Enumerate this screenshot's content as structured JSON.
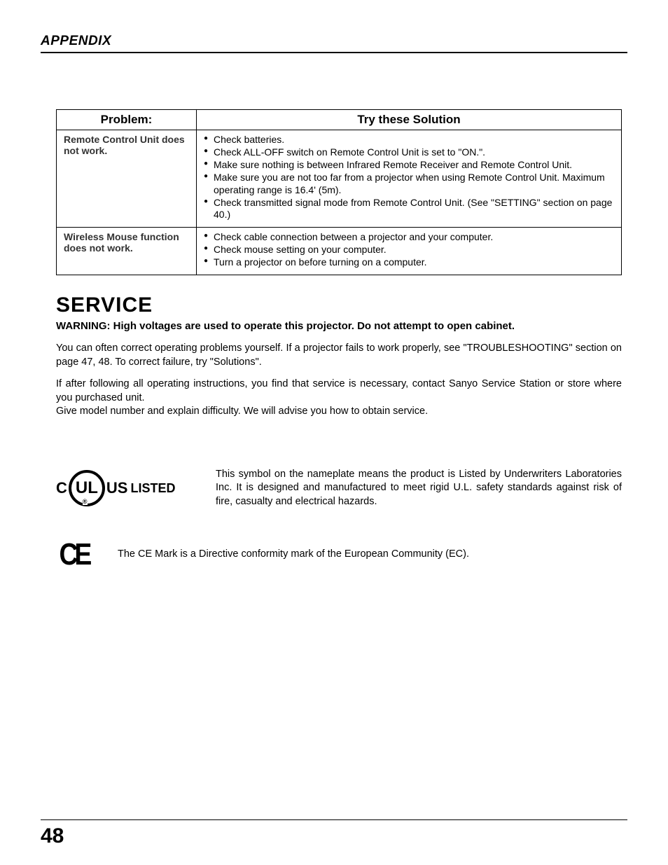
{
  "page": {
    "header": "APPENDIX",
    "number": "48"
  },
  "table": {
    "col_problem": "Problem:",
    "col_solution": "Try these Solution",
    "rows": [
      {
        "problem": "Remote Control Unit does not work.",
        "solutions": [
          "Check batteries.",
          "Check ALL-OFF switch on Remote Control Unit is set to \"ON.\".",
          "Make sure nothing is between Infrared Remote Receiver and Remote Control Unit.",
          "Make sure you are not too far from a projector when using Remote Control Unit. Maximum operating range is 16.4' (5m).",
          "Check transmitted signal mode from Remote Control Unit. (See \"SETTING\" section on page 40.)"
        ]
      },
      {
        "problem": "Wireless Mouse function does not work.",
        "solutions": [
          "Check cable connection between a projector and your computer.",
          "Check mouse setting on your computer.",
          "Turn a projector on before turning on a computer."
        ]
      }
    ]
  },
  "service": {
    "title": "SERVICE",
    "warning": "WARNING: High voltages are used to operate this projector. Do not attempt to open cabinet.",
    "p1": "You can often correct operating problems yourself. If a projector fails to work properly, see \"TROUBLESHOOTING\" section on page 47, 48. To correct failure, try \"Solutions\".",
    "p2": "If after following all operating instructions, you find that service is necessary, contact Sanyo Service Station or store where you purchased unit.",
    "p3": "Give model number and explain difficulty. We will advise you how to obtain service."
  },
  "ul_mark": {
    "c": "C",
    "ul": "UL",
    "r": "®",
    "us": "US",
    "listed": "LISTED",
    "text": "This symbol on the nameplate means the product is Listed by Underwriters Laboratories Inc.  It is designed and manufactured to meet rigid U.L. safety standards against risk of fire, casualty and electrical hazards."
  },
  "ce_mark": {
    "symbol": "CE",
    "text": "The CE Mark is a Directive conformity mark of the European Community (EC)."
  }
}
